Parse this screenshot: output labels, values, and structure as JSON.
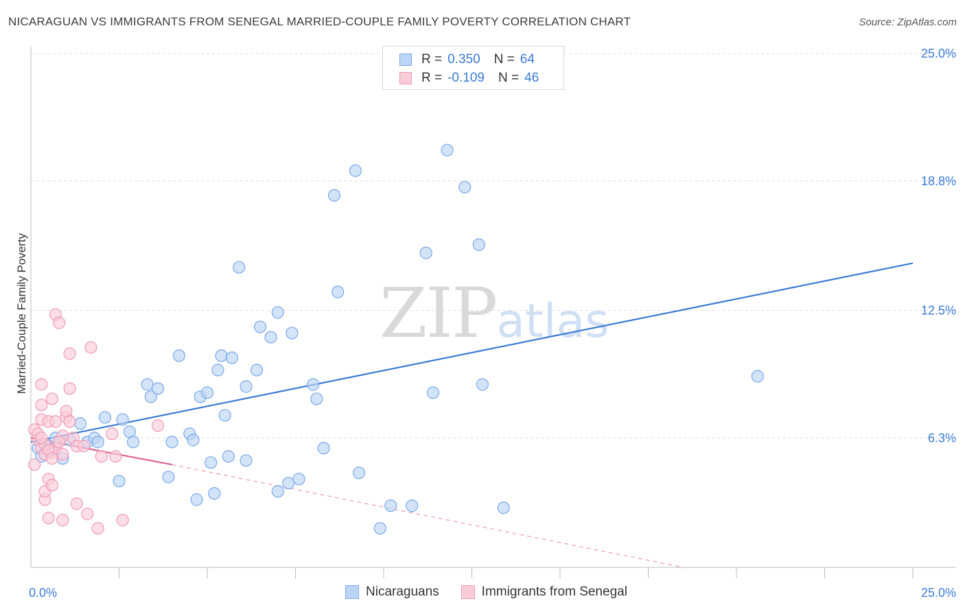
{
  "header": {
    "title": "NICARAGUAN VS IMMIGRANTS FROM SENEGAL MARRIED-COUPLE FAMILY POVERTY CORRELATION CHART",
    "source": "Source: ZipAtlas.com"
  },
  "watermark": {
    "zip": "ZIP",
    "atlas": "atlas"
  },
  "legend": {
    "rows": [
      {
        "r_label": "R =",
        "r_value": " 0.350",
        "n_label": "N =",
        "n_value": "64",
        "color": "#7aa8e8",
        "fill": "#bcd4f5"
      },
      {
        "r_label": "R =",
        "r_value": "-0.109",
        "n_label": "N =",
        "n_value": "46",
        "color": "#ef9ab5",
        "fill": "#f9ccd9"
      }
    ]
  },
  "bottom_legend": {
    "series1": "Nicaraguans",
    "series2": "Immigrants from Senegal"
  },
  "chart_data": {
    "type": "scatter",
    "title": "NICARAGUAN VS IMMIGRANTS FROM SENEGAL MARRIED-COUPLE FAMILY POVERTY CORRELATION CHART",
    "xlabel": "",
    "ylabel": "Married-Couple Family Poverty",
    "xlim": [
      0,
      25
    ],
    "ylim": [
      0,
      25
    ],
    "x_tick_labels": {
      "left": "0.0%",
      "right": "25.0%"
    },
    "y_ticks": [
      {
        "value": 6.3,
        "label": "6.3%"
      },
      {
        "value": 12.5,
        "label": "12.5%"
      },
      {
        "value": 18.8,
        "label": "18.8%"
      },
      {
        "value": 25.0,
        "label": "25.0%"
      }
    ],
    "grid": true,
    "series": [
      {
        "name": "Nicaraguans",
        "color": "#3a7bd5",
        "fill": "#bcd4f5",
        "edge": "#7aa8e8",
        "trend": {
          "x0": 0.0,
          "y0": 6.1,
          "x1": 25.0,
          "y1": 14.8,
          "style": "solid"
        },
        "points": [
          [
            0.2,
            5.8
          ],
          [
            0.3,
            5.4
          ],
          [
            0.4,
            6.0
          ],
          [
            0.5,
            5.9
          ],
          [
            0.6,
            5.7
          ],
          [
            0.7,
            6.3
          ],
          [
            0.9,
            5.3
          ],
          [
            1.1,
            6.2
          ],
          [
            1.4,
            7.0
          ],
          [
            1.6,
            6.1
          ],
          [
            1.8,
            6.3
          ],
          [
            1.9,
            6.1
          ],
          [
            2.1,
            7.3
          ],
          [
            2.5,
            4.2
          ],
          [
            2.6,
            7.2
          ],
          [
            2.8,
            6.6
          ],
          [
            2.9,
            6.1
          ],
          [
            3.3,
            8.9
          ],
          [
            3.4,
            8.3
          ],
          [
            3.6,
            8.7
          ],
          [
            3.9,
            4.4
          ],
          [
            4.0,
            6.1
          ],
          [
            4.2,
            10.3
          ],
          [
            4.5,
            6.5
          ],
          [
            4.6,
            6.2
          ],
          [
            4.7,
            3.3
          ],
          [
            4.8,
            8.3
          ],
          [
            5.0,
            8.5
          ],
          [
            5.1,
            5.1
          ],
          [
            5.2,
            3.6
          ],
          [
            5.3,
            9.6
          ],
          [
            5.4,
            10.3
          ],
          [
            5.5,
            7.4
          ],
          [
            5.6,
            5.4
          ],
          [
            5.7,
            10.2
          ],
          [
            5.9,
            14.6
          ],
          [
            6.1,
            8.8
          ],
          [
            6.1,
            5.2
          ],
          [
            6.4,
            9.6
          ],
          [
            6.5,
            11.7
          ],
          [
            6.8,
            11.2
          ],
          [
            7.0,
            12.4
          ],
          [
            7.0,
            3.7
          ],
          [
            7.3,
            4.1
          ],
          [
            7.4,
            11.4
          ],
          [
            7.6,
            4.3
          ],
          [
            8.0,
            8.9
          ],
          [
            8.1,
            8.2
          ],
          [
            8.3,
            5.8
          ],
          [
            8.6,
            18.1
          ],
          [
            8.7,
            13.4
          ],
          [
            9.2,
            19.3
          ],
          [
            9.3,
            4.6
          ],
          [
            9.9,
            1.9
          ],
          [
            10.2,
            3.0
          ],
          [
            10.8,
            3.0
          ],
          [
            11.2,
            15.3
          ],
          [
            11.4,
            8.5
          ],
          [
            11.8,
            20.3
          ],
          [
            12.3,
            18.5
          ],
          [
            12.7,
            15.7
          ],
          [
            12.8,
            8.9
          ],
          [
            13.4,
            2.9
          ],
          [
            20.6,
            9.3
          ]
        ]
      },
      {
        "name": "Immigrants from Senegal",
        "color": "#e0608e",
        "fill": "#f9ccd9",
        "edge": "#ef9ab5",
        "trend": {
          "x0": 0.0,
          "y0": 6.3,
          "x1": 4.0,
          "y1": 5.0,
          "style": "solid"
        },
        "trend_dashed": {
          "x0": 4.0,
          "y0": 5.0,
          "x1": 18.5,
          "y1": 0.0,
          "style": "dashed"
        },
        "points": [
          [
            0.1,
            5.0
          ],
          [
            0.1,
            6.7
          ],
          [
            0.2,
            6.2
          ],
          [
            0.3,
            5.8
          ],
          [
            0.3,
            7.2
          ],
          [
            0.3,
            7.9
          ],
          [
            0.3,
            8.9
          ],
          [
            0.4,
            5.5
          ],
          [
            0.4,
            3.3
          ],
          [
            0.4,
            3.7
          ],
          [
            0.5,
            4.3
          ],
          [
            0.5,
            7.1
          ],
          [
            0.5,
            2.4
          ],
          [
            0.6,
            4.0
          ],
          [
            0.6,
            5.6
          ],
          [
            0.6,
            8.2
          ],
          [
            0.7,
            5.8
          ],
          [
            0.7,
            12.3
          ],
          [
            0.7,
            7.1
          ],
          [
            0.8,
            11.9
          ],
          [
            0.9,
            5.5
          ],
          [
            0.9,
            2.3
          ],
          [
            0.9,
            6.4
          ],
          [
            1.0,
            7.3
          ],
          [
            1.0,
            7.6
          ],
          [
            1.1,
            10.4
          ],
          [
            1.1,
            8.7
          ],
          [
            1.1,
            7.1
          ],
          [
            1.2,
            6.3
          ],
          [
            1.3,
            5.9
          ],
          [
            1.3,
            3.1
          ],
          [
            1.5,
            5.9
          ],
          [
            1.6,
            2.6
          ],
          [
            1.7,
            10.7
          ],
          [
            1.9,
            1.9
          ],
          [
            2.0,
            5.4
          ],
          [
            2.3,
            6.5
          ],
          [
            2.4,
            5.4
          ],
          [
            2.6,
            2.3
          ],
          [
            3.6,
            6.9
          ],
          [
            0.2,
            6.5
          ],
          [
            0.4,
            6.0
          ],
          [
            0.5,
            5.7
          ],
          [
            0.6,
            5.3
          ],
          [
            0.8,
            6.1
          ],
          [
            0.3,
            6.3
          ]
        ]
      }
    ]
  }
}
